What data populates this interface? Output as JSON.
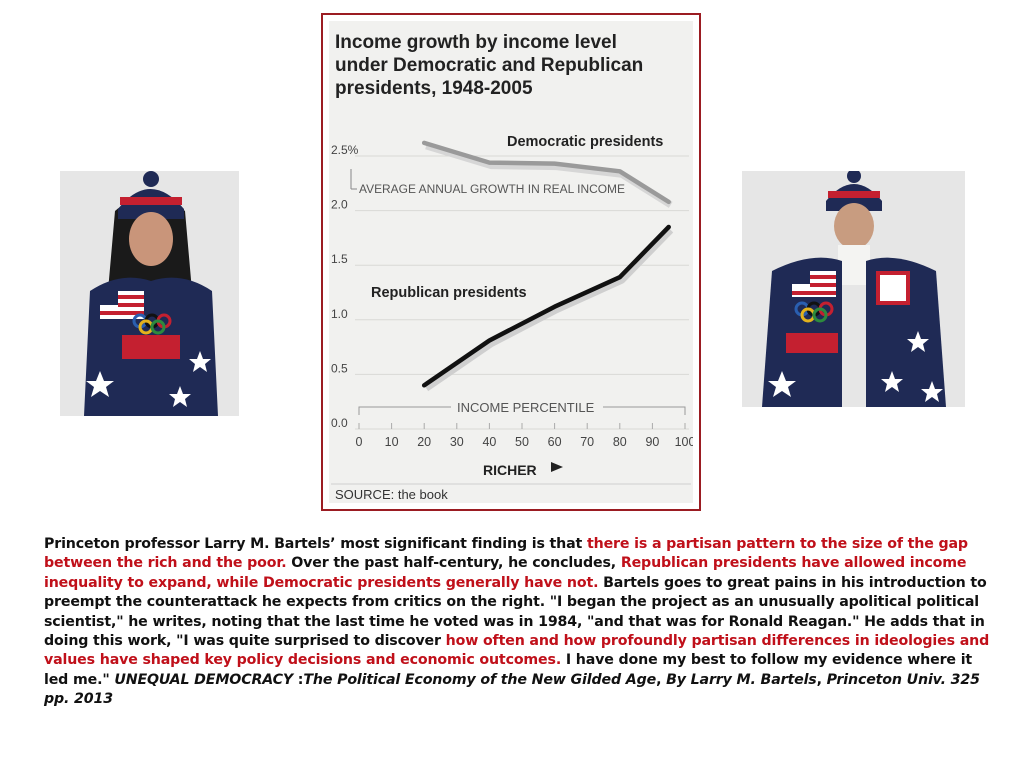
{
  "chart_data": {
    "type": "line",
    "title": "Income growth by income level under Democratic and Republican presidents, 1948-2005",
    "title_lines": [
      "Income growth by income level",
      "under Democratic and Republican",
      "presidents, 1948-2005"
    ],
    "ylabel": "AVERAGE ANNUAL GROWTH IN REAL INCOME",
    "xlabel": "INCOME PERCENTILE",
    "x_direction_label": "RICHER",
    "source": "SOURCE: the book",
    "xlim": [
      0,
      100
    ],
    "ylim": [
      0,
      2.5
    ],
    "x_ticks": [
      "0",
      "10",
      "20",
      "30",
      "40",
      "50",
      "60",
      "70",
      "80",
      "90",
      "100"
    ],
    "y_ticks": [
      "0.0",
      "0.5",
      "1.0",
      "1.5",
      "2.0",
      "2.5%"
    ],
    "y_tick_values": [
      0,
      0.5,
      1.0,
      1.5,
      2.0,
      2.5
    ],
    "grid": true,
    "series": [
      {
        "name": "Democratic presidents",
        "color": "#9a9a9a",
        "x": [
          20,
          40,
          60,
          80,
          95
        ],
        "y": [
          2.62,
          2.44,
          2.43,
          2.36,
          2.08
        ]
      },
      {
        "name": "Republican presidents",
        "color": "#111111",
        "x": [
          20,
          40,
          60,
          80,
          95
        ],
        "y": [
          0.4,
          0.81,
          1.12,
          1.39,
          1.85
        ]
      }
    ]
  },
  "caption": {
    "s1": "Princeton professor Larry M. Bartels’ most significant finding is that ",
    "h1": "there is a partisan pattern to the size of the gap between the rich and the poor.",
    "s2": " Over the past half-century, he concludes, ",
    "h2": "Republican presidents have allowed income inequality to expand, while Democratic presidents generally have not.",
    "s3": " Bartels goes to great pains in his introduction to preempt the counterattack he expects from critics on the right. \"I began the project as an unusually apolitical political scientist,\" he writes, noting that the last time he voted was in 1984, \"and that was for Ronald Reagan.\" He adds that in doing this work, \"I was quite surprised to discover ",
    "h3": "how often and how profoundly partisan differences in ideologies and values have shaped key policy decisions and economic outcomes.",
    "s4": " I have done my best to follow my evidence where it led me.\" ",
    "i1": "UNEQUAL DEMOCRACY",
    "s5": " :",
    "i2": "The Political Economy of the New Gilded Age",
    "s6": ", ",
    "i3": "By Larry M. Bartels",
    "s7": ", ",
    "i4": "Princeton Univ. 325 pp. 2013"
  },
  "colors": {
    "frame": "#9b1c22",
    "highlight": "#c0101a",
    "chart_background": "#f1f1ef"
  }
}
